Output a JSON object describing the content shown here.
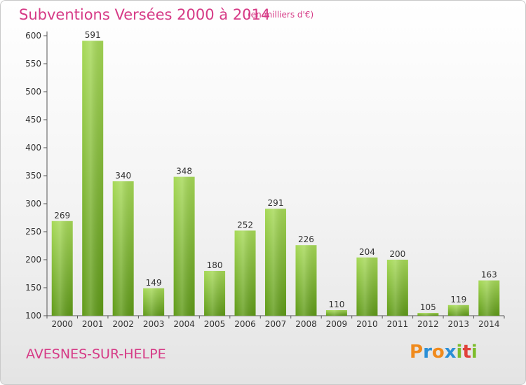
{
  "chart_data": {
    "type": "bar",
    "title": "Subventions Versées 2000 à 2014",
    "subtitle": "(en milliers d'€)",
    "categories": [
      "2000",
      "2001",
      "2002",
      "2003",
      "2004",
      "2005",
      "2006",
      "2007",
      "2008",
      "2009",
      "2010",
      "2011",
      "2012",
      "2013",
      "2014"
    ],
    "values": [
      269,
      591,
      340,
      149,
      348,
      180,
      252,
      291,
      226,
      110,
      204,
      200,
      105,
      119,
      163
    ],
    "ylim": [
      100,
      600
    ],
    "yticks": [
      100,
      150,
      200,
      250,
      300,
      350,
      400,
      450,
      500,
      550,
      600
    ],
    "grid": false,
    "bar_color": "#7cbd2a"
  },
  "footer": {
    "place": "AVESNES-SUR-HELPE",
    "logo_letters": [
      "P",
      "r",
      "o",
      "x",
      "i",
      "t",
      "i"
    ],
    "logo_colors": [
      "#f08a1c",
      "#2b8fd6",
      "#f08a1c",
      "#2b8fd6",
      "#7cbd2a",
      "#e0413a",
      "#7cbd2a"
    ]
  }
}
